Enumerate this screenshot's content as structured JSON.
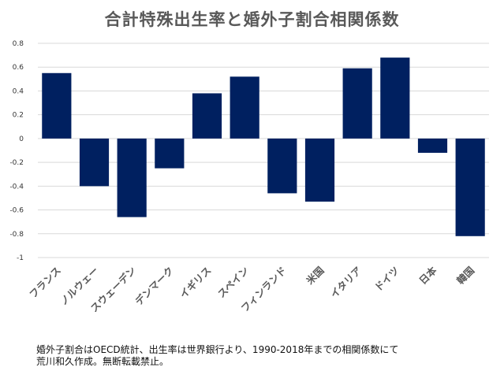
{
  "chart_data": {
    "type": "bar",
    "title": "合計特殊出生率と婚外子割合相関係数",
    "categories": [
      "フランス",
      "ノルウェー",
      "スウェーデン",
      "デンマーク",
      "イギリス",
      "スペイン",
      "フィンランド",
      "米国",
      "イタリア",
      "ドイツ",
      "日本",
      "韓国"
    ],
    "values": [
      0.55,
      -0.4,
      -0.66,
      -0.25,
      0.38,
      0.52,
      -0.46,
      -0.53,
      0.59,
      0.68,
      -0.12,
      -0.82
    ],
    "ylim": [
      -1,
      0.8
    ],
    "yticks": [
      0.8,
      0.6,
      0.4,
      0.2,
      0,
      -0.2,
      -0.4,
      -0.6,
      -0.8,
      -1
    ],
    "ytick_labels": [
      "0.8",
      "0.6",
      "0.4",
      "0.2",
      "0",
      "-0.2",
      "-0.4",
      "-0.6",
      "-0.8",
      "-1"
    ],
    "bar_color": "#002060",
    "grid": true,
    "legend": "none"
  },
  "footnote": {
    "line1": "婚外子割合はOECD統計、出生率は世界銀行より、1990-2018年までの相関係数にて",
    "line2": "荒川和久作成。無断転載禁止。"
  }
}
